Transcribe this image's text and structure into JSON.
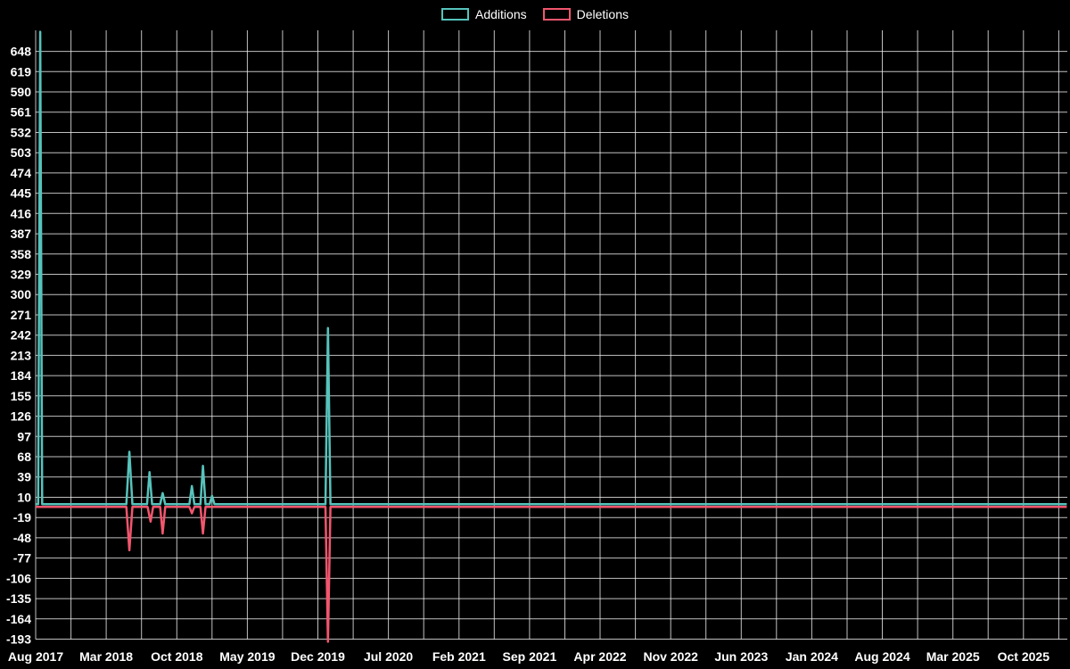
{
  "legend": {
    "additions_label": "Additions",
    "deletions_label": "Deletions"
  },
  "colors": {
    "background": "#000000",
    "text": "#ffffff",
    "grid": "#f0f0f0",
    "additions": "#56c3bc",
    "deletions": "#f2566e"
  },
  "axes": {
    "y_ticks": [
      648,
      619,
      590,
      561,
      532,
      503,
      474,
      445,
      416,
      387,
      358,
      329,
      300,
      271,
      242,
      213,
      184,
      155,
      126,
      97,
      68,
      39,
      10,
      -19,
      -48,
      -77,
      -106,
      -135,
      -164,
      -193
    ],
    "x_labels": [
      "Aug 2017",
      "Mar 2018",
      "Oct 2018",
      "May 2019",
      "Dec 2019",
      "Jul 2020",
      "Feb 2021",
      "Sep 2021",
      "Apr 2022",
      "Nov 2022",
      "Jun 2023",
      "Jan 2024",
      "Aug 2024",
      "Mar 2025",
      "Oct 2025"
    ],
    "x_label_month_step": 7
  },
  "chart_data": {
    "type": "line",
    "title": "",
    "xlabel": "",
    "ylabel": "",
    "x_unit": "months since Aug 2017",
    "xlim": [
      0,
      102.3
    ],
    "ylim": [
      -193,
      677
    ],
    "grid": true,
    "legend_position": "top-center",
    "series": [
      {
        "name": "Additions",
        "color_key": "additions",
        "points": [
          [
            0,
            0
          ],
          [
            0.25,
            0
          ],
          [
            0.45,
            676
          ],
          [
            0.65,
            0
          ],
          [
            9.0,
            0
          ],
          [
            9.3,
            75
          ],
          [
            9.6,
            0
          ],
          [
            11.05,
            0
          ],
          [
            11.3,
            46
          ],
          [
            11.55,
            0
          ],
          [
            12.35,
            0
          ],
          [
            12.6,
            16
          ],
          [
            12.85,
            0
          ],
          [
            15.25,
            0
          ],
          [
            15.5,
            26
          ],
          [
            15.75,
            0
          ],
          [
            16.35,
            0
          ],
          [
            16.6,
            55
          ],
          [
            16.85,
            0
          ],
          [
            17.25,
            0
          ],
          [
            17.5,
            12
          ],
          [
            17.75,
            0
          ],
          [
            28.75,
            0
          ],
          [
            29.0,
            252
          ],
          [
            29.25,
            0
          ],
          [
            102.3,
            0
          ]
        ]
      },
      {
        "name": "Deletions",
        "color_key": "deletions",
        "points": [
          [
            0,
            0
          ],
          [
            9.0,
            0
          ],
          [
            9.3,
            -62
          ],
          [
            9.6,
            0
          ],
          [
            11.1,
            0
          ],
          [
            11.4,
            -21
          ],
          [
            11.65,
            0
          ],
          [
            12.35,
            0
          ],
          [
            12.6,
            -38
          ],
          [
            12.85,
            0
          ],
          [
            15.25,
            0
          ],
          [
            15.5,
            -9
          ],
          [
            15.75,
            0
          ],
          [
            16.35,
            0
          ],
          [
            16.6,
            -38
          ],
          [
            16.85,
            0
          ],
          [
            28.75,
            0
          ],
          [
            29.0,
            -193
          ],
          [
            29.25,
            0
          ],
          [
            102.3,
            0
          ]
        ]
      }
    ]
  }
}
